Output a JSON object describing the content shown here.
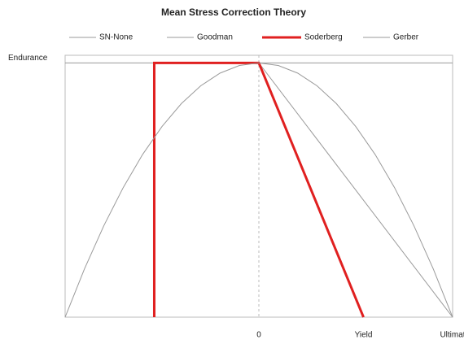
{
  "chart_data": {
    "type": "line",
    "title": "Mean Stress Correction Theory",
    "xlim": [
      -100,
      100
    ],
    "ylim": [
      0,
      103
    ],
    "xticks": [
      {
        "value": 0,
        "label": "0"
      },
      {
        "value": 54,
        "label": "Yield"
      },
      {
        "value": 100,
        "label": "Ultimat"
      }
    ],
    "yticks": [
      {
        "value": 100,
        "label": "Endurance"
      }
    ],
    "series": [
      {
        "name": "SN-None",
        "color": "#9a9a9a",
        "width": 1,
        "x": [
          -100,
          100
        ],
        "values": [
          100,
          100
        ]
      },
      {
        "name": "Goodman",
        "color": "#9a9a9a",
        "width": 1,
        "x": [
          0,
          100
        ],
        "values": [
          100,
          0
        ]
      },
      {
        "name": "Soderberg",
        "color": "#e02020",
        "width": 3,
        "x": [
          -54,
          -54,
          0,
          54
        ],
        "values": [
          0,
          100,
          100,
          0
        ]
      },
      {
        "name": "Gerber",
        "color": "#9a9a9a",
        "width": 1,
        "x": [
          -100,
          -90,
          -80,
          -70,
          -60,
          -50,
          -40,
          -30,
          -20,
          -10,
          0,
          10,
          20,
          30,
          40,
          50,
          60,
          70,
          80,
          90,
          100
        ],
        "values": [
          0,
          19,
          36,
          51,
          64,
          75,
          84,
          91,
          96,
          99,
          100,
          99,
          96,
          91,
          84,
          75,
          64,
          51,
          36,
          19,
          0
        ]
      }
    ]
  }
}
